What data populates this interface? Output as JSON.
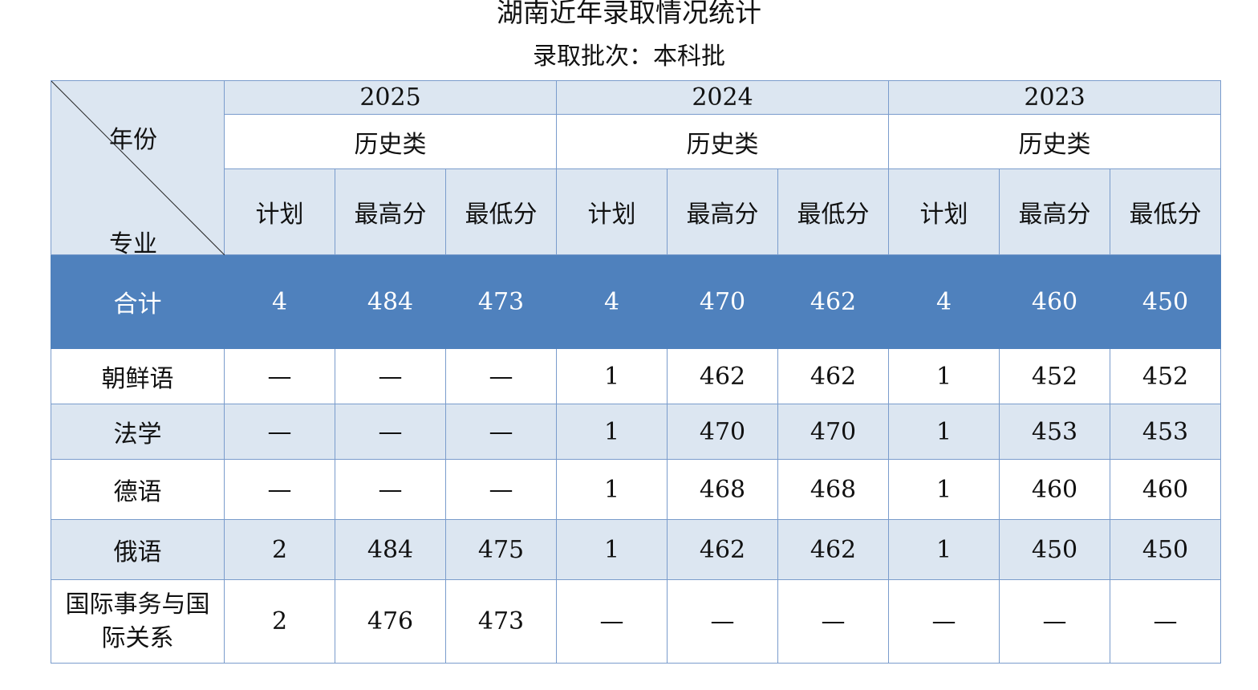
{
  "title": "湖南近年录取情况统计",
  "subtitle": "录取批次：本科批",
  "corner": {
    "year_label": "年份",
    "major_label": "专业"
  },
  "years": [
    {
      "year": "2025",
      "category": "历史类"
    },
    {
      "year": "2024",
      "category": "历史类"
    },
    {
      "year": "2023",
      "category": "历史类"
    }
  ],
  "sub_headers": [
    "计划",
    "最高分",
    "最低分"
  ],
  "total": {
    "label": "合计",
    "values": [
      "4",
      "484",
      "473",
      "4",
      "470",
      "462",
      "4",
      "460",
      "450"
    ]
  },
  "rows": [
    {
      "major": "朝鲜语",
      "values": [
        "—",
        "—",
        "—",
        "1",
        "462",
        "462",
        "1",
        "452",
        "452"
      ]
    },
    {
      "major": "法学",
      "values": [
        "—",
        "—",
        "—",
        "1",
        "470",
        "470",
        "1",
        "453",
        "453"
      ]
    },
    {
      "major": "德语",
      "values": [
        "—",
        "—",
        "—",
        "1",
        "468",
        "468",
        "1",
        "460",
        "460"
      ]
    },
    {
      "major": "俄语",
      "values": [
        "2",
        "484",
        "475",
        "1",
        "462",
        "462",
        "1",
        "450",
        "450"
      ]
    },
    {
      "major": "国际事务与国际关系",
      "values": [
        "2",
        "476",
        "473",
        "—",
        "—",
        "—",
        "—",
        "—",
        "—"
      ]
    }
  ],
  "colors": {
    "header_bg": "#dce6f1",
    "total_bg": "#4f81bd",
    "border": "#7a9ccc"
  }
}
